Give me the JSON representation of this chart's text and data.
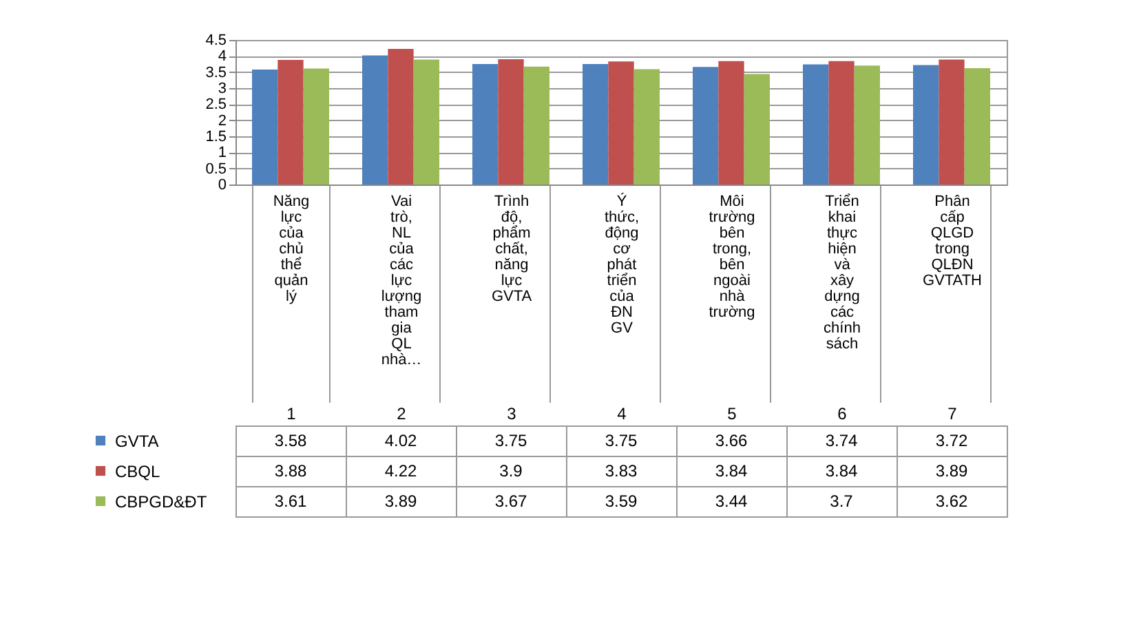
{
  "chart_data": {
    "type": "bar",
    "categories": [
      "Năng lực của chủ thể quản lý",
      "Vai trò, NL của các lực lượng tham gia QL nhà…",
      "Trình độ, phẩm chất, năng lực GVTA",
      "Ý thức, động cơ phát triển của ĐN GV",
      "Môi trường bên trong, bên ngoài nhà trường",
      "Triển khai thực hiện và xây dựng các chính sách",
      "Phân cấp QLGD trong QLĐN GVTATH"
    ],
    "series": [
      {
        "name": "GVTA",
        "color": "#4f81bd",
        "values": [
          3.58,
          4.02,
          3.75,
          3.75,
          3.66,
          3.74,
          3.72
        ]
      },
      {
        "name": "CBQL",
        "color": "#c0504d",
        "values": [
          3.88,
          4.22,
          3.9,
          3.83,
          3.84,
          3.84,
          3.89
        ]
      },
      {
        "name": "CBPGD&ĐT",
        "color": "#9bbb59",
        "values": [
          3.61,
          3.89,
          3.67,
          3.59,
          3.44,
          3.7,
          3.62
        ]
      }
    ],
    "annotations": [
      "1",
      "2",
      "3",
      "4",
      "5",
      "6",
      "7"
    ],
    "ylim": [
      0,
      4.5
    ],
    "yticks": [
      0,
      0.5,
      1,
      1.5,
      2,
      2.5,
      3,
      3.5,
      4,
      4.5
    ],
    "grid": "y",
    "legend": "left",
    "data_labels": true
  }
}
